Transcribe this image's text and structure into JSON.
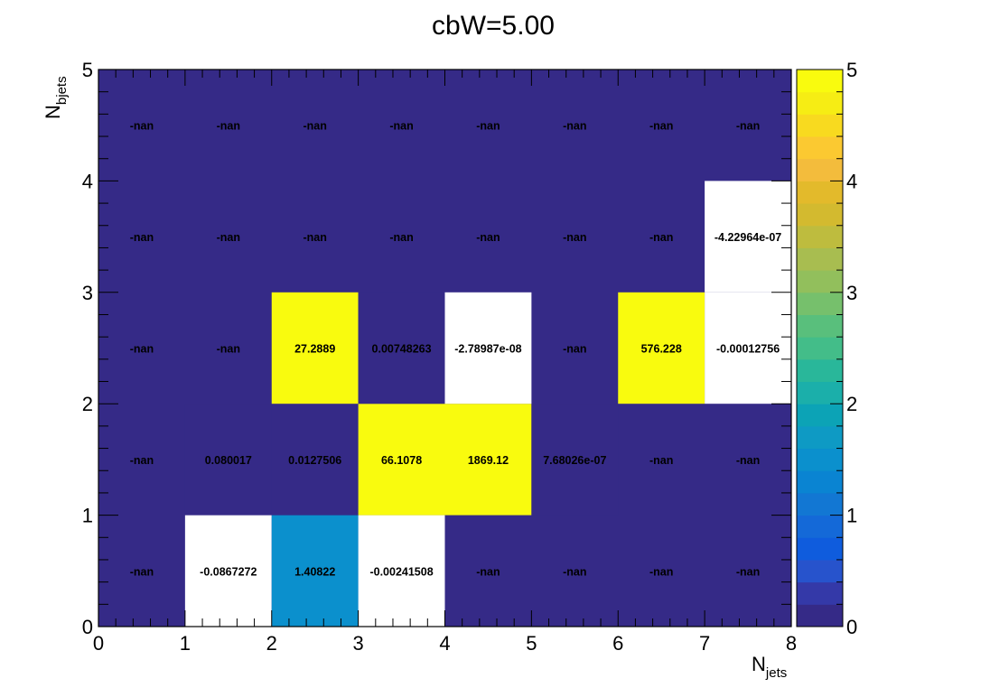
{
  "chart_data": {
    "type": "heatmap",
    "title": "cbW=5.00",
    "xlabel": {
      "main": "N",
      "sub": "jets"
    },
    "ylabel": {
      "main": "N",
      "sub": "bjets"
    },
    "xlim": [
      0,
      8
    ],
    "ylim": [
      0,
      5
    ],
    "x_ticks": [
      "0",
      "1",
      "2",
      "3",
      "4",
      "5",
      "6",
      "7",
      "8"
    ],
    "y_ticks": [
      "0",
      "1",
      "2",
      "3",
      "4",
      "5"
    ],
    "z_range": [
      0,
      5
    ],
    "z_ticks": [
      "0",
      "1",
      "2",
      "3",
      "4",
      "5"
    ],
    "frame_fill": "#352a87",
    "palette": [
      "#352a87",
      "#3439a8",
      "#2753cc",
      "#0f5cdd",
      "#1469d8",
      "#1277d3",
      "#0a84d2",
      "#0b90cd",
      "#0e9ac4",
      "#0ca3b6",
      "#1bafaa",
      "#29b79a",
      "#43bd89",
      "#59bf7c",
      "#76c06c",
      "#92bf5c",
      "#a8bd50",
      "#bebc3e",
      "#d3ba2f",
      "#e3ba2b",
      "#f3bc3c",
      "#fbc931",
      "#f8da1f",
      "#f6ed14",
      "#f9fb0e"
    ],
    "cells": [
      {
        "x": 0,
        "y": 0,
        "label": "-nan",
        "value": null
      },
      {
        "x": 1,
        "y": 0,
        "label": "-0.0867272",
        "value": -0.0867272
      },
      {
        "x": 2,
        "y": 0,
        "label": "1.40822",
        "value": 1.40822
      },
      {
        "x": 3,
        "y": 0,
        "label": "-0.00241508",
        "value": -0.00241508
      },
      {
        "x": 4,
        "y": 0,
        "label": "-nan",
        "value": null
      },
      {
        "x": 5,
        "y": 0,
        "label": "-nan",
        "value": null
      },
      {
        "x": 6,
        "y": 0,
        "label": "-nan",
        "value": null
      },
      {
        "x": 7,
        "y": 0,
        "label": "-nan",
        "value": null
      },
      {
        "x": 0,
        "y": 1,
        "label": "-nan",
        "value": null
      },
      {
        "x": 1,
        "y": 1,
        "label": "0.080017",
        "value": 0.080017
      },
      {
        "x": 2,
        "y": 1,
        "label": "0.0127506",
        "value": 0.0127506
      },
      {
        "x": 3,
        "y": 1,
        "label": "66.1078",
        "value": 66.1078
      },
      {
        "x": 4,
        "y": 1,
        "label": "1869.12",
        "value": 1869.12
      },
      {
        "x": 5,
        "y": 1,
        "label": "7.68026e-07",
        "value": 7.68026e-07
      },
      {
        "x": 6,
        "y": 1,
        "label": "-nan",
        "value": null
      },
      {
        "x": 7,
        "y": 1,
        "label": "-nan",
        "value": null
      },
      {
        "x": 0,
        "y": 2,
        "label": "-nan",
        "value": null
      },
      {
        "x": 1,
        "y": 2,
        "label": "-nan",
        "value": null
      },
      {
        "x": 2,
        "y": 2,
        "label": "27.2889",
        "value": 27.2889
      },
      {
        "x": 3,
        "y": 2,
        "label": "0.00748263",
        "value": 0.00748263
      },
      {
        "x": 4,
        "y": 2,
        "label": "-2.78987e-08",
        "value": -2.78987e-08
      },
      {
        "x": 5,
        "y": 2,
        "label": "-nan",
        "value": null
      },
      {
        "x": 6,
        "y": 2,
        "label": "576.228",
        "value": 576.228
      },
      {
        "x": 7,
        "y": 2,
        "label": "-0.00012756",
        "value": -0.00012756
      },
      {
        "x": 0,
        "y": 3,
        "label": "-nan",
        "value": null
      },
      {
        "x": 1,
        "y": 3,
        "label": "-nan",
        "value": null
      },
      {
        "x": 2,
        "y": 3,
        "label": "-nan",
        "value": null
      },
      {
        "x": 3,
        "y": 3,
        "label": "-nan",
        "value": null
      },
      {
        "x": 4,
        "y": 3,
        "label": "-nan",
        "value": null
      },
      {
        "x": 5,
        "y": 3,
        "label": "-nan",
        "value": null
      },
      {
        "x": 6,
        "y": 3,
        "label": "-nan",
        "value": null
      },
      {
        "x": 7,
        "y": 3,
        "label": "-4.22964e-07",
        "value": -4.22964e-07
      },
      {
        "x": 0,
        "y": 4,
        "label": "-nan",
        "value": null
      },
      {
        "x": 1,
        "y": 4,
        "label": "-nan",
        "value": null
      },
      {
        "x": 2,
        "y": 4,
        "label": "-nan",
        "value": null
      },
      {
        "x": 3,
        "y": 4,
        "label": "-nan",
        "value": null
      },
      {
        "x": 4,
        "y": 4,
        "label": "-nan",
        "value": null
      },
      {
        "x": 5,
        "y": 4,
        "label": "-nan",
        "value": null
      },
      {
        "x": 6,
        "y": 4,
        "label": "-nan",
        "value": null
      },
      {
        "x": 7,
        "y": 4,
        "label": "-nan",
        "value": null
      }
    ]
  }
}
